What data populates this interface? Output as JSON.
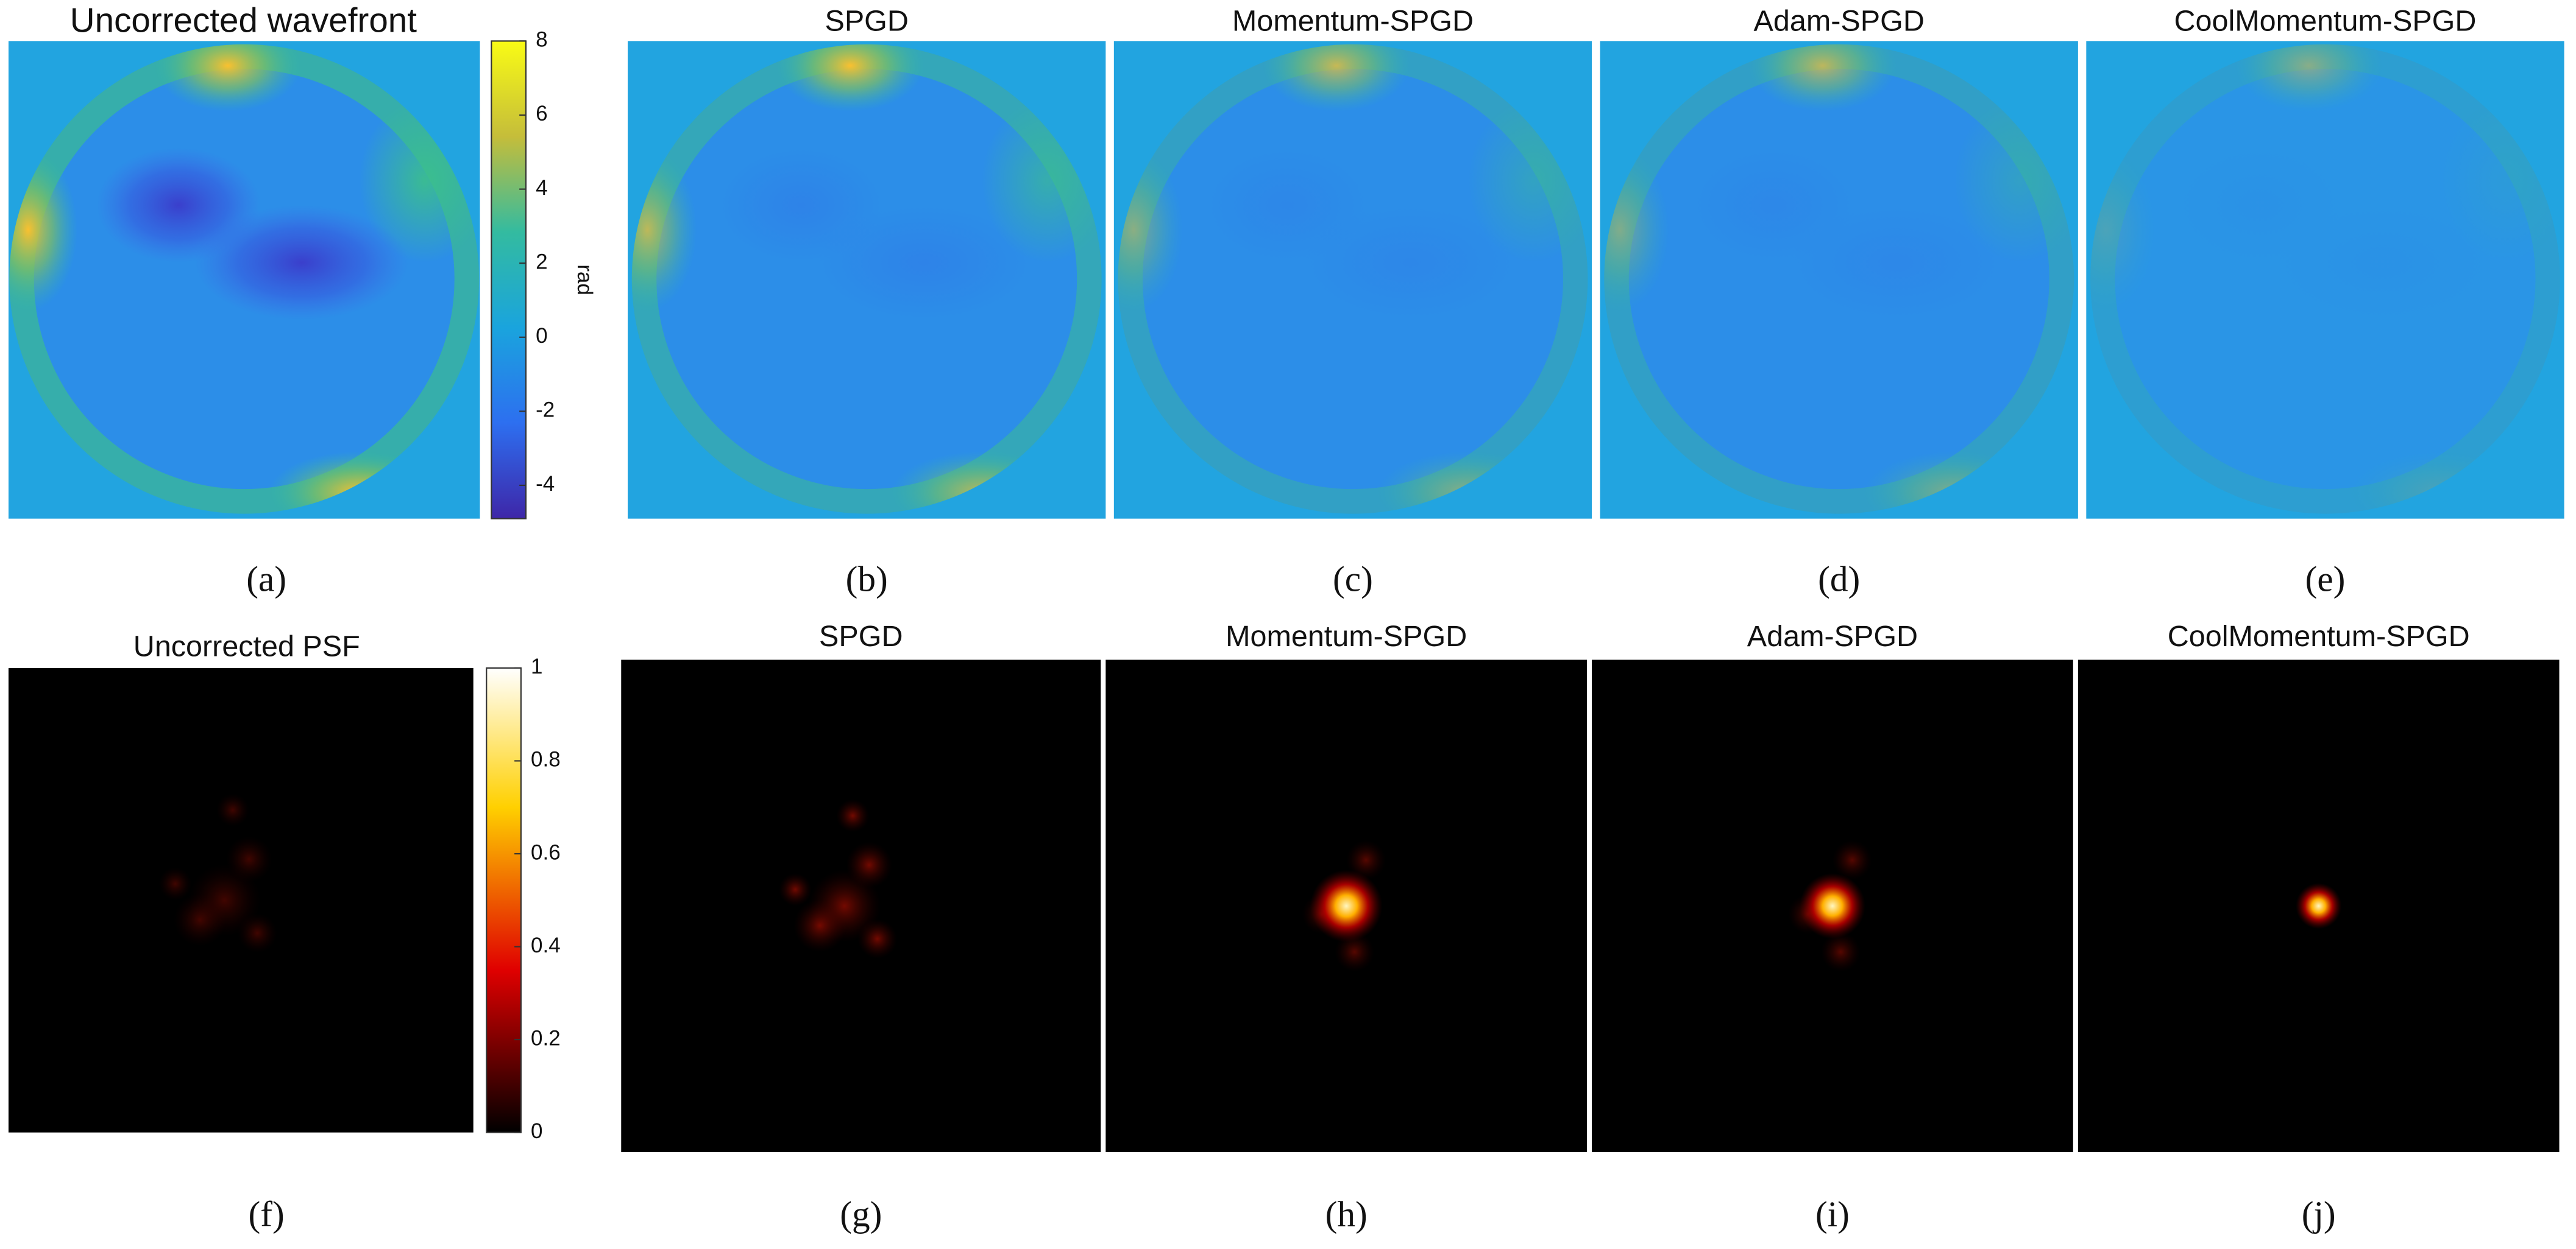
{
  "top_row": {
    "panels": [
      {
        "title": "Uncorrected wavefront",
        "label": "(a)"
      },
      {
        "title": "SPGD",
        "label": "(b)"
      },
      {
        "title": "Momentum-SPGD",
        "label": "(c)"
      },
      {
        "title": "Adam-SPGD",
        "label": "(d)"
      },
      {
        "title": "CoolMomentum-SPGD",
        "label": "(e)"
      }
    ],
    "colorbar": {
      "label": "rad",
      "lim": [
        -4.9,
        8
      ],
      "ticks": [
        8,
        6,
        4,
        2,
        0,
        -2,
        -4
      ]
    }
  },
  "bottom_row": {
    "panels": [
      {
        "title": "Uncorrected PSF",
        "label": "(f)"
      },
      {
        "title": "SPGD",
        "label": "(g)"
      },
      {
        "title": "Momentum-SPGD",
        "label": "(h)"
      },
      {
        "title": "Adam-SPGD",
        "label": "(i)"
      },
      {
        "title": "CoolMomentum-SPGD",
        "label": "(j)"
      }
    ],
    "colorbar": {
      "lim": [
        0,
        1
      ],
      "ticks": [
        1,
        0.8,
        0.6,
        0.4,
        0.2,
        0
      ]
    }
  }
}
